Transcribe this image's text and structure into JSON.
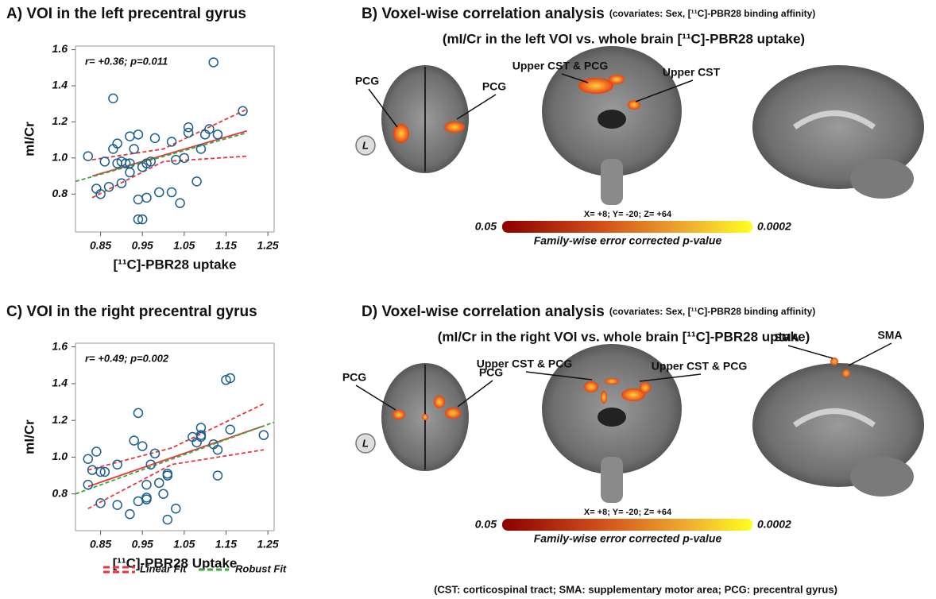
{
  "chart_data": [
    {
      "type": "scatter",
      "title": "A) VOI in the left precentral gyrus",
      "annotation": "r= +0.36; p=0.011",
      "x_label": "[¹¹C]-PBR28 uptake",
      "y_label": "mI/Cr",
      "xlim": [
        0.79,
        1.265
      ],
      "ylim": [
        0.59,
        1.62
      ],
      "xticks": [
        0.85,
        0.95,
        1.05,
        1.15,
        1.25
      ],
      "yticks": [
        0.8,
        {
          "value": 1,
          "label": "1.0"
        },
        1.2,
        1.4,
        1.6
      ],
      "points": {
        "color": "#1b5f8c",
        "x": [
          0.82,
          0.84,
          0.85,
          0.86,
          0.87,
          0.88,
          0.88,
          0.89,
          0.89,
          0.9,
          0.9,
          0.91,
          0.92,
          0.92,
          0.92,
          0.93,
          0.94,
          0.94,
          0.94,
          0.95,
          0.95,
          0.96,
          0.96,
          0.97,
          0.98,
          0.99,
          1.02,
          1.02,
          1.03,
          1.04,
          1.05,
          1.06,
          1.06,
          1.08,
          1.09,
          1.1,
          1.11,
          1.12,
          1.13,
          1.19
        ],
        "values": [
          1.01,
          0.83,
          0.8,
          0.98,
          0.84,
          1.05,
          1.33,
          0.97,
          1.08,
          0.86,
          0.98,
          0.97,
          1.12,
          0.92,
          0.97,
          1.05,
          1.13,
          0.77,
          0.66,
          0.95,
          0.66,
          0.97,
          0.78,
          0.98,
          1.11,
          0.81,
          0.81,
          1.09,
          0.99,
          0.75,
          1.0,
          1.17,
          1.14,
          0.87,
          1.05,
          1.13,
          1.16,
          1.53,
          1.13,
          1.26
        ]
      },
      "fits": [
        {
          "color": "#e8363a",
          "x": [
            0.83,
            1.2
          ],
          "values": [
            0.9,
            1.15
          ]
        },
        {
          "color": "#3aa83a",
          "x": [
            0.79,
            1.2
          ],
          "values": [
            0.87,
            1.14
          ]
        },
        {
          "color": "#e8363a",
          "x": [
            0.83,
            1.0,
            1.2
          ],
          "values": [
            0.99,
            1.05,
            1.27
          ]
        },
        {
          "color": "#e8363a",
          "x": [
            0.83,
            1.0,
            1.2
          ],
          "values": [
            0.78,
            0.98,
            1.01
          ]
        }
      ]
    },
    {
      "type": "scatter",
      "title": "C) VOI in the right precentral gyrus",
      "annotation": "r= +0.49; p=0.002",
      "x_label": "[¹¹C]-PBR28 Uptake",
      "y_label": "mI/Cr",
      "xlim": [
        0.79,
        1.265
      ],
      "ylim": [
        0.6,
        1.62
      ],
      "xticks": [
        0.85,
        0.95,
        1.05,
        1.15,
        1.25
      ],
      "yticks": [
        0.8,
        {
          "value": 1,
          "label": "1.0"
        },
        1.2,
        1.4,
        1.6
      ],
      "points": {
        "color": "#1b5f8c",
        "x": [
          0.82,
          0.82,
          0.83,
          0.84,
          0.85,
          0.85,
          0.86,
          0.89,
          0.89,
          0.92,
          0.93,
          0.94,
          0.94,
          0.95,
          0.96,
          0.96,
          0.96,
          0.97,
          0.98,
          0.99,
          1.0,
          1.01,
          1.01,
          1.01,
          1.03,
          1.07,
          1.08,
          1.09,
          1.09,
          1.09,
          1.12,
          1.13,
          1.13,
          1.15,
          1.16,
          1.16,
          1.24
        ],
        "values": [
          0.99,
          0.85,
          0.93,
          1.03,
          0.92,
          0.75,
          0.92,
          0.96,
          0.74,
          0.69,
          1.09,
          1.24,
          0.76,
          1.06,
          0.85,
          0.77,
          0.78,
          0.96,
          1.02,
          0.86,
          0.8,
          0.9,
          0.91,
          0.66,
          0.72,
          1.11,
          1.08,
          1.16,
          1.12,
          1.11,
          1.07,
          1.04,
          0.9,
          1.42,
          1.43,
          1.15,
          1.12
        ]
      },
      "fits": [
        {
          "name": "Linear Fit",
          "color": "#e8363a",
          "x": [
            0.82,
            1.24
          ],
          "values": [
            0.84,
            1.17
          ]
        },
        {
          "name": "Robust Fit",
          "color": "#3aa83a",
          "x": [
            0.79,
            1.265
          ],
          "values": [
            0.8,
            1.19
          ]
        },
        {
          "color": "#e8363a",
          "x": [
            0.82,
            1.02,
            1.24
          ],
          "values": [
            0.93,
            1.05,
            1.29
          ]
        },
        {
          "color": "#e8363a",
          "x": [
            0.82,
            1.02,
            1.24
          ],
          "values": [
            0.72,
            0.96,
            1.04
          ]
        }
      ]
    }
  ],
  "panels": [
    {
      "title": "B) Voxel-wise correlation analysis",
      "covariates": "(covariates: Sex, [¹¹C]-PBR28 binding affinity)",
      "subtitle": "(mI/Cr in the left VOI vs. whole brain [¹¹C]-PBR28 uptake)",
      "orientation": "L",
      "labels": [
        "PCG",
        "PCG",
        "Upper CST & PCG",
        "Upper CST"
      ],
      "coordinates": "X= +8; Y= -20; Z= +64",
      "scale_min": "0.05",
      "scale_max": "0.0002",
      "scale_label": "Family-wise error corrected p-value"
    },
    {
      "title": "D) Voxel-wise correlation analysis",
      "covariates": "(covariates: Sex, [¹¹C]-PBR28 binding affinity)",
      "subtitle": "(mI/Cr in the right VOI vs. whole brain [¹¹C]-PBR28 uptake)",
      "orientation": "L",
      "labels": [
        "PCG",
        "PCG",
        "Upper CST & PCG",
        "Upper CST & PCG",
        "SMA",
        "SMA"
      ],
      "coordinates": "X= +8; Y= -20; Z= +64",
      "scale_min": "0.05",
      "scale_max": "0.0002",
      "scale_label": "Family-wise error corrected p-value"
    }
  ],
  "footnote": "(CST: corticospinal tract; SMA: supplementary motor area; PCG: precentral gyrus)"
}
